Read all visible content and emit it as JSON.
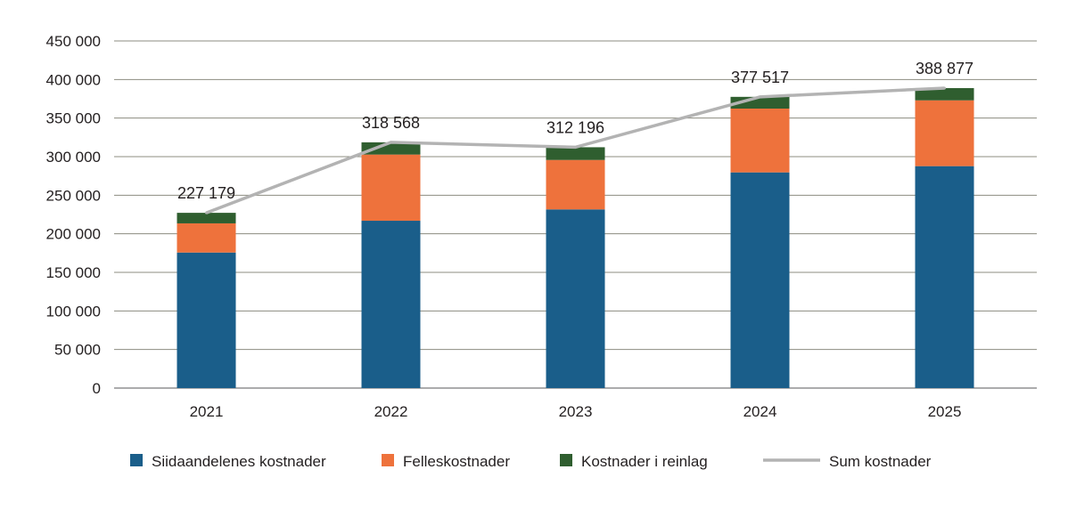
{
  "chart_data": {
    "type": "bar",
    "stacked": true,
    "categories": [
      "2021",
      "2022",
      "2023",
      "2024",
      "2025"
    ],
    "series": [
      {
        "name": "Siidaandelenes kostnader",
        "color": "#1a5e8a",
        "values": [
          175700,
          216900,
          231600,
          279600,
          287700
        ]
      },
      {
        "name": "Felleskostnader",
        "color": "#ee723c",
        "values": [
          37800,
          85800,
          64100,
          82700,
          85300
        ]
      },
      {
        "name": "Kostnader i reinlag",
        "color": "#2f5e2f",
        "values": [
          13679,
          15868,
          16496,
          15217,
          15877
        ]
      }
    ],
    "line_series": {
      "name": "Sum kostnader",
      "color": "#b3b3b3",
      "values": [
        227179,
        318568,
        312196,
        377517,
        388877
      ]
    },
    "data_labels": [
      "227 179",
      "318 568",
      "312 196",
      "377 517",
      "388 877"
    ],
    "y_ticks": [
      "0",
      "50 000",
      "100 000",
      "150 000",
      "200 000",
      "250 000",
      "300 000",
      "350 000",
      "400 000",
      "450 000"
    ],
    "ylim": [
      0,
      450000
    ],
    "grid": true,
    "legend_position": "bottom"
  }
}
